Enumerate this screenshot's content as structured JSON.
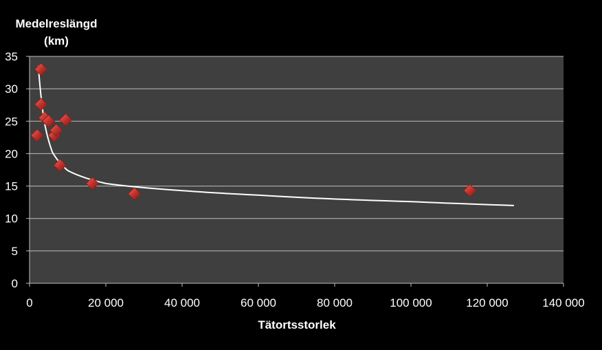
{
  "chart_data": {
    "type": "scatter",
    "ylabel_lines": [
      "Medelreslängd",
      "(km)"
    ],
    "xlabel": "Tätortsstorlek",
    "xlim": [
      0,
      140000
    ],
    "ylim": [
      0,
      35
    ],
    "x_ticks": [
      0,
      20000,
      40000,
      60000,
      80000,
      100000,
      120000,
      140000
    ],
    "x_tick_labels": [
      "0",
      "20 000",
      "40 000",
      "60 000",
      "80 000",
      "100 000",
      "120 000",
      "140 000"
    ],
    "y_ticks": [
      0,
      5,
      10,
      15,
      20,
      25,
      30,
      35
    ],
    "y_tick_labels": [
      "0",
      "5",
      "10",
      "15",
      "20",
      "25",
      "30",
      "35"
    ],
    "grid": true,
    "points": [
      {
        "x": 2000,
        "y": 22.8
      },
      {
        "x": 3000,
        "y": 33.0
      },
      {
        "x": 3000,
        "y": 27.6
      },
      {
        "x": 4000,
        "y": 25.5
      },
      {
        "x": 5000,
        "y": 25.0
      },
      {
        "x": 6500,
        "y": 22.8
      },
      {
        "x": 7000,
        "y": 23.6
      },
      {
        "x": 8000,
        "y": 18.2
      },
      {
        "x": 9500,
        "y": 25.2
      },
      {
        "x": 16500,
        "y": 15.4
      },
      {
        "x": 27500,
        "y": 13.8
      },
      {
        "x": 115500,
        "y": 14.3
      }
    ],
    "trendline": {
      "type": "power",
      "x_range": [
        2300,
        127000
      ],
      "points": [
        [
          2300,
          33.6
        ],
        [
          4000,
          24.5
        ],
        [
          6000,
          20.2
        ],
        [
          10000,
          17.4
        ],
        [
          20000,
          15.4
        ],
        [
          40000,
          14.3
        ],
        [
          60000,
          13.6
        ],
        [
          80000,
          13.0
        ],
        [
          100000,
          12.6
        ],
        [
          127000,
          12.0
        ]
      ]
    },
    "colors": {
      "background": "#000000",
      "plot_area": "#3f3f3f",
      "gridline": "#bfbfbf",
      "marker": "#c0312b",
      "trendline": "#ffffff"
    }
  }
}
